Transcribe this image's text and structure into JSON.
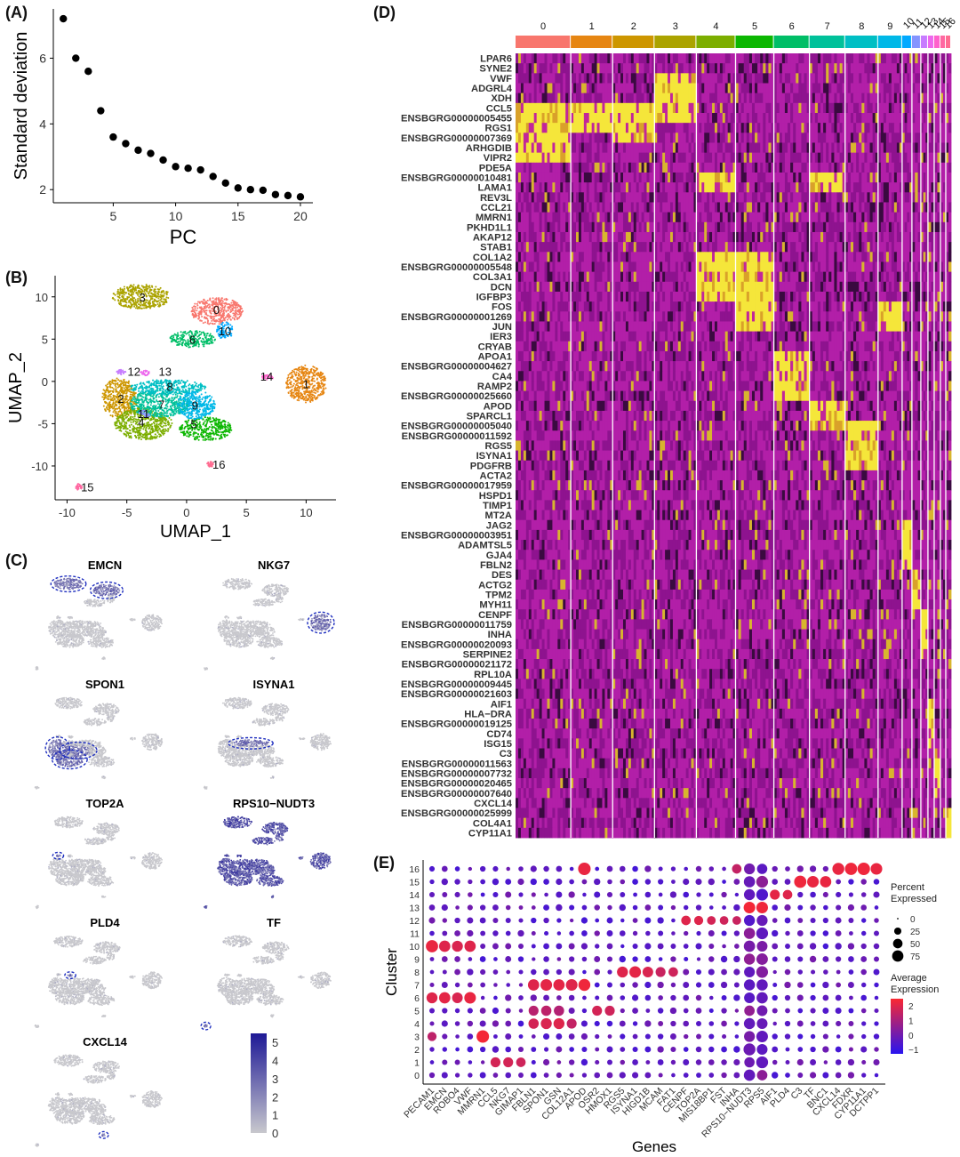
{
  "panels": {
    "a": "(A)",
    "b": "(B)",
    "c": "(C)",
    "d": "(D)",
    "e": "(E)"
  },
  "chart_data": [
    {
      "id": "A",
      "type": "scatter",
      "xlabel": "PC",
      "ylabel": "Standard deviation",
      "xlim": [
        0.2,
        21
      ],
      "ylim": [
        1.6,
        7.5
      ],
      "xticks": [
        5,
        10,
        15,
        20
      ],
      "yticks": [
        2,
        4,
        6
      ],
      "x": [
        1,
        2,
        3,
        4,
        5,
        6,
        7,
        8,
        9,
        10,
        11,
        12,
        13,
        14,
        15,
        16,
        17,
        18,
        19,
        20
      ],
      "y": [
        7.2,
        6.0,
        5.6,
        4.4,
        3.6,
        3.4,
        3.2,
        3.1,
        2.9,
        2.7,
        2.65,
        2.6,
        2.4,
        2.2,
        2.05,
        2.0,
        1.98,
        1.85,
        1.82,
        1.78
      ]
    },
    {
      "id": "B",
      "type": "scatter",
      "xlabel": "UMAP_1",
      "ylabel": "UMAP_2",
      "xlim": [
        -11,
        12.5
      ],
      "ylim": [
        -14,
        12.5
      ],
      "xticks": [
        -10,
        -5,
        0,
        5,
        10
      ],
      "yticks": [
        -10,
        -5,
        0,
        5,
        10
      ],
      "clusters": [
        {
          "label": "0",
          "color": "#F8766D",
          "cx": 2.5,
          "cy": 8.3,
          "rx": 2.2,
          "ry": 1.6,
          "lx": 2.5,
          "ly": 8.5
        },
        {
          "label": "1",
          "color": "#E68613",
          "cx": 10,
          "cy": -0.3,
          "rx": 1.7,
          "ry": 2.2,
          "lx": 10,
          "ly": -0.3
        },
        {
          "label": "2",
          "color": "#CD9600",
          "cx": -5.6,
          "cy": -2,
          "rx": 1.5,
          "ry": 2.4,
          "lx": -5.5,
          "ly": -2
        },
        {
          "label": "3",
          "color": "#ABA300",
          "cx": -3.8,
          "cy": 10,
          "rx": 2.4,
          "ry": 1.5,
          "lx": -3.7,
          "ly": 10
        },
        {
          "label": "4",
          "color": "#7CAE00",
          "cx": -3.6,
          "cy": -5,
          "rx": 2.4,
          "ry": 1.9,
          "lx": -3.8,
          "ly": -4.8
        },
        {
          "label": "5",
          "color": "#0CB702",
          "cx": 1.6,
          "cy": -5.6,
          "rx": 2.2,
          "ry": 1.4,
          "lx": 0.6,
          "ly": -5
        },
        {
          "label": "6",
          "color": "#00BE67",
          "cx": 0.5,
          "cy": 5,
          "rx": 1.9,
          "ry": 1.0,
          "lx": 0.5,
          "ly": 5
        },
        {
          "label": "7",
          "color": "#00C19A",
          "cx": -2.2,
          "cy": -2.6,
          "rx": 2.6,
          "ry": 1.6,
          "lx": -2.1,
          "ly": -2.7
        },
        {
          "label": "8",
          "color": "#00BFC4",
          "cx": -1.6,
          "cy": -0.7,
          "rx": 3.2,
          "ry": 0.9,
          "lx": -1.4,
          "ly": -0.6
        },
        {
          "label": "9",
          "color": "#00B8E7",
          "cx": 0.8,
          "cy": -2.8,
          "rx": 1.6,
          "ry": 1.7,
          "lx": 0.7,
          "ly": -2.8
        },
        {
          "label": "10",
          "color": "#00A9FF",
          "cx": 3.2,
          "cy": 6,
          "rx": 0.7,
          "ry": 1.0,
          "lx": 3.2,
          "ly": 6
        },
        {
          "label": "11",
          "color": "#8494FF",
          "cx": -3.5,
          "cy": -3.8,
          "rx": 0.5,
          "ry": 0.4,
          "lx": -3.6,
          "ly": -3.8
        },
        {
          "label": "12",
          "color": "#C77CFF",
          "cx": -5.5,
          "cy": 1.1,
          "rx": 0.4,
          "ry": 0.3,
          "lx": -4.4,
          "ly": 1.2
        },
        {
          "label": "13",
          "color": "#ED68ED",
          "cx": -3.5,
          "cy": 1.0,
          "rx": 0.4,
          "ry": 0.3,
          "lx": -1.8,
          "ly": 1.2
        },
        {
          "label": "14",
          "color": "#FF61CC",
          "cx": 6.8,
          "cy": 0.5,
          "rx": 0.5,
          "ry": 0.3,
          "lx": 6.7,
          "ly": 0.6
        },
        {
          "label": "15",
          "color": "#FF68A1",
          "cx": -9,
          "cy": -12.5,
          "rx": 0.3,
          "ry": 0.4,
          "lx": -8.3,
          "ly": -12.5
        },
        {
          "label": "16",
          "color": "#FF6C91",
          "cx": 2.0,
          "cy": -9.8,
          "rx": 0.3,
          "ry": 0.3,
          "lx": 2.7,
          "ly": -9.8
        }
      ]
    },
    {
      "id": "C",
      "type": "scatter",
      "facets": [
        {
          "gene": "EMCN"
        },
        {
          "gene": "NKG7"
        },
        {
          "gene": "SPON1"
        },
        {
          "gene": "ISYNA1"
        },
        {
          "gene": "TOP2A"
        },
        {
          "gene": "RPS10−NUDT3"
        },
        {
          "gene": "PLD4"
        },
        {
          "gene": "TF"
        },
        {
          "gene": "CXCL14"
        }
      ],
      "colorbar_ticks": [
        "5",
        "4",
        "3",
        "2",
        "1",
        "0"
      ],
      "colorbar_range": [
        0,
        5.5
      ]
    },
    {
      "id": "D",
      "type": "heatmap",
      "clusters": [
        {
          "label": "0",
          "color": "#F8766D",
          "width": 62
        },
        {
          "label": "1",
          "color": "#E68613",
          "width": 47
        },
        {
          "label": "2",
          "color": "#CD9600",
          "width": 47
        },
        {
          "label": "3",
          "color": "#ABA300",
          "width": 47
        },
        {
          "label": "4",
          "color": "#7CAE00",
          "width": 44
        },
        {
          "label": "5",
          "color": "#0CB702",
          "width": 43
        },
        {
          "label": "6",
          "color": "#00BE67",
          "width": 40
        },
        {
          "label": "7",
          "color": "#00C19A",
          "width": 40
        },
        {
          "label": "8",
          "color": "#00BFC4",
          "width": 37
        },
        {
          "label": "9",
          "color": "#00B8E7",
          "width": 27
        },
        {
          "label": "10",
          "color": "#00A9FF",
          "width": 11
        },
        {
          "label": "11",
          "color": "#8494FF",
          "width": 10
        },
        {
          "label": "12",
          "color": "#C77CFF",
          "width": 8
        },
        {
          "label": "13",
          "color": "#ED68ED",
          "width": 7
        },
        {
          "label": "14",
          "color": "#FF61CC",
          "width": 7
        },
        {
          "label": "15",
          "color": "#FF68A1",
          "width": 6
        },
        {
          "label": "16",
          "color": "#FF6C91",
          "width": 6
        }
      ],
      "genes": [
        "LPAR6",
        "SYNE2",
        "VWF",
        "ADGRL4",
        "XDH",
        "CCL5",
        "ENSBGRG00000005455",
        "RGS1",
        "ENSBGRG00000007369",
        "ARHGDIB",
        "VIPR2",
        "PDE5A",
        "ENSBGRG00000010481",
        "LAMA1",
        "REV3L",
        "CCL21",
        "MMRN1",
        "PKHD1L1",
        "AKAP12",
        "STAB1",
        "COL1A2",
        "ENSBGRG00000005548",
        "COL3A1",
        "DCN",
        "IGFBP3",
        "FOS",
        "ENSBGRG00000001269",
        "JUN",
        "IER3",
        "CRYAB",
        "APOA1",
        "ENSBGRG00000004627",
        "CA4",
        "RAMP2",
        "ENSBGRG00000025660",
        "APOD",
        "SPARCL1",
        "ENSBGRG00000005040",
        "ENSBGRG00000011592",
        "RGS5",
        "ISYNA1",
        "PDGFRB",
        "ACTA2",
        "ENSBGRG00000017959",
        "HSPD1",
        "TIMP1",
        "MT2A",
        "JAG2",
        "ENSBGRG00000003951",
        "ADAMTSL5",
        "GJA4",
        "FBLN2",
        "DES",
        "ACTG2",
        "TPM2",
        "MYH11",
        "CENPF",
        "ENSBGRG00000011759",
        "INHA",
        "ENSBGRG00000020093",
        "SERPINE2",
        "ENSBGRG00000021172",
        "RPL10A",
        "ENSBGRG00000009445",
        "ENSBGRG00000021603",
        "AIF1",
        "HLA−DRA",
        "ENSBGRG00000019125",
        "CD74",
        "ISG15",
        "C3",
        "ENSBGRG00000011563",
        "ENSBGRG00000007732",
        "ENSBGRG00000020465",
        "ENSBGRG00000007640",
        "CXCL14",
        "ENSBGRG00000025999",
        "COL4A1",
        "CYP11A1"
      ],
      "high_blocks": [
        [
          0,
          6,
          0,
          5
        ],
        [
          0,
          5,
          7,
          1
        ],
        [
          1,
          5,
          10,
          3
        ],
        [
          3,
          5,
          3,
          1
        ],
        [
          2,
          6,
          3,
          2
        ],
        [
          2,
          5,
          5,
          4
        ],
        [
          3,
          2,
          11,
          5
        ],
        [
          4,
          12,
          3,
          2
        ],
        [
          4,
          20,
          3,
          5
        ],
        [
          5,
          20,
          5,
          5
        ],
        [
          7,
          12,
          3,
          2
        ],
        [
          5,
          24,
          5,
          4
        ],
        [
          9,
          25,
          2,
          3
        ],
        [
          6,
          30,
          5,
          5
        ],
        [
          7,
          35,
          2,
          3
        ],
        [
          8,
          37,
          2,
          5
        ],
        [
          10,
          47,
          1,
          5
        ],
        [
          11,
          52,
          1,
          4
        ],
        [
          12,
          56,
          1,
          5
        ],
        [
          13,
          65,
          1,
          5
        ],
        [
          14,
          70,
          1,
          5
        ],
        [
          16,
          76,
          1,
          4
        ]
      ]
    },
    {
      "id": "E",
      "type": "scatter",
      "xlabel": "Genes",
      "ylabel": "Cluster",
      "genes": [
        "PECAM1",
        "EMCN",
        "ROBO4",
        "VWF",
        "MMRN1",
        "CCL5",
        "NKG7",
        "GIMAP1",
        "FBLN1",
        "SPON1",
        "GSN",
        "COL12A1",
        "APOD",
        "OSR2",
        "HMOX1",
        "RGS5",
        "ISYNA1",
        "HIGD1B",
        "MCAM",
        "FAT1",
        "CENPF",
        "TOP2A",
        "MIS18BP1",
        "FST",
        "INHA",
        "RPS10−NUDT3",
        "RPS5",
        "AIF1",
        "PLD4",
        "C3",
        "TF",
        "BNC1",
        "CXCL14",
        "FDXR",
        "CYP11A1",
        "DCTPP1"
      ],
      "clusters": [
        "0",
        "1",
        "2",
        "3",
        "4",
        "5",
        "6",
        "7",
        "8",
        "9",
        "10",
        "11",
        "12",
        "13",
        "14",
        "15",
        "16"
      ],
      "markers": [
        [
          10,
          0,
          90,
          2.2
        ],
        [
          10,
          1,
          75,
          2.0
        ],
        [
          10,
          2,
          70,
          1.9
        ],
        [
          10,
          3,
          75,
          2.0
        ],
        [
          6,
          0,
          70,
          2.0
        ],
        [
          6,
          1,
          75,
          2.1
        ],
        [
          6,
          2,
          65,
          1.9
        ],
        [
          6,
          3,
          80,
          2.2
        ],
        [
          3,
          0,
          45,
          1.4
        ],
        [
          3,
          4,
          95,
          2.4
        ],
        [
          1,
          5,
          55,
          1.8
        ],
        [
          1,
          6,
          55,
          1.8
        ],
        [
          1,
          7,
          50,
          1.7
        ],
        [
          4,
          8,
          60,
          1.8
        ],
        [
          4,
          9,
          70,
          1.9
        ],
        [
          4,
          10,
          70,
          2.0
        ],
        [
          4,
          11,
          55,
          1.5
        ],
        [
          5,
          8,
          55,
          1.3
        ],
        [
          5,
          9,
          60,
          1.4
        ],
        [
          5,
          10,
          60,
          1.2
        ],
        [
          5,
          13,
          55,
          1.8
        ],
        [
          5,
          14,
          55,
          1.7
        ],
        [
          7,
          8,
          75,
          2.0
        ],
        [
          7,
          9,
          80,
          2.1
        ],
        [
          7,
          10,
          75,
          2.1
        ],
        [
          7,
          11,
          80,
          2.0
        ],
        [
          7,
          12,
          85,
          2.3
        ],
        [
          8,
          15,
          70,
          2.0
        ],
        [
          8,
          16,
          80,
          2.1
        ],
        [
          8,
          17,
          65,
          1.9
        ],
        [
          8,
          18,
          55,
          1.6
        ],
        [
          8,
          19,
          50,
          1.7
        ],
        [
          12,
          20,
          50,
          2.0
        ],
        [
          12,
          21,
          45,
          2.0
        ],
        [
          12,
          22,
          40,
          1.8
        ],
        [
          12,
          23,
          40,
          1.7
        ],
        [
          12,
          24,
          40,
          1.6
        ],
        [
          13,
          25,
          80,
          2.4
        ],
        [
          13,
          26,
          80,
          2.3
        ],
        [
          14,
          27,
          55,
          2.1
        ],
        [
          14,
          28,
          50,
          2.0
        ],
        [
          15,
          29,
          90,
          2.3
        ],
        [
          15,
          30,
          80,
          2.2
        ],
        [
          15,
          31,
          75,
          2.2
        ],
        [
          16,
          12,
          95,
          2.2
        ],
        [
          16,
          24,
          50,
          1.5
        ],
        [
          16,
          32,
          85,
          2.2
        ],
        [
          16,
          33,
          90,
          2.3
        ],
        [
          16,
          34,
          95,
          2.3
        ],
        [
          16,
          35,
          80,
          2.2
        ]
      ],
      "legend_size_title": [
        "Percent",
        "Expressed"
      ],
      "legend_size_values": [
        "0",
        "25",
        "50",
        "75"
      ],
      "legend_color_title": [
        "Average",
        "Expression"
      ],
      "legend_color_ticks": [
        "2",
        "1",
        "0",
        "−1"
      ],
      "color_range": [
        -1.3,
        2.5
      ]
    }
  ]
}
